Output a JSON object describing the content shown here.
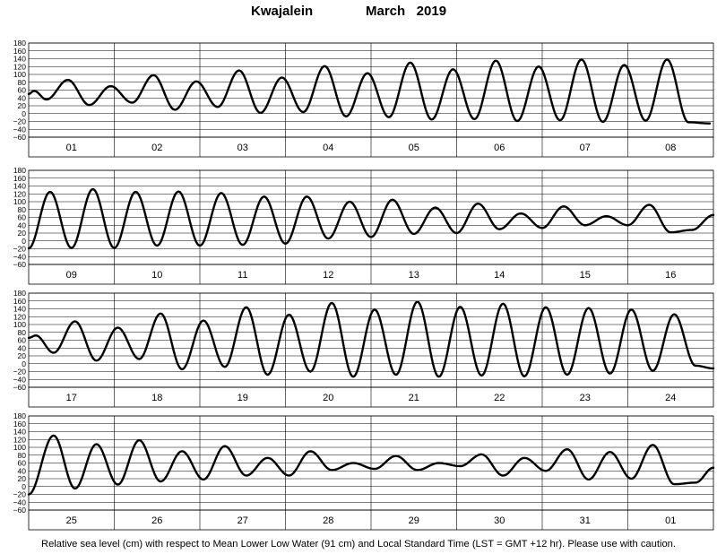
{
  "header": {
    "station": "Kwajalein",
    "month_year": "March   2019"
  },
  "footer": {
    "note": "Relative sea level (cm) with respect to Mean Lower Low Water (91 cm) and Local Standard Time (LST = GMT +12 hr). Please use with caution."
  },
  "chart_data": {
    "type": "line",
    "series_color": "#000000",
    "ylim": [
      -60,
      180
    ],
    "yticks": [
      180,
      160,
      140,
      120,
      100,
      80,
      60,
      40,
      20,
      0,
      -20,
      -40,
      -60
    ],
    "grid": true,
    "panels": [
      {
        "days": [
          "01",
          "02",
          "03",
          "04",
          "05",
          "06",
          "07",
          "08"
        ],
        "extrema": [
          [
            0,
            50
          ],
          [
            1.5,
            58
          ],
          [
            5,
            36
          ],
          [
            11,
            86
          ],
          [
            17,
            22
          ],
          [
            23,
            70
          ],
          [
            29,
            28
          ],
          [
            35,
            98
          ],
          [
            41,
            10
          ],
          [
            47,
            82
          ],
          [
            53,
            17
          ],
          [
            59,
            110
          ],
          [
            65,
            2
          ],
          [
            71,
            92
          ],
          [
            77,
            4
          ],
          [
            83,
            121
          ],
          [
            89,
            -7
          ],
          [
            95,
            103
          ],
          [
            101,
            -9
          ],
          [
            107,
            130
          ],
          [
            113,
            -15
          ],
          [
            119,
            113
          ],
          [
            125,
            -14
          ],
          [
            131,
            135
          ],
          [
            137,
            -19
          ],
          [
            143,
            120
          ],
          [
            149,
            -17
          ],
          [
            155,
            138
          ],
          [
            161,
            -21
          ],
          [
            167,
            124
          ],
          [
            173,
            -18
          ],
          [
            179,
            138
          ],
          [
            185,
            -22
          ],
          [
            191,
            -25
          ]
        ]
      },
      {
        "days": [
          "09",
          "10",
          "11",
          "12",
          "13",
          "14",
          "15",
          "16"
        ],
        "extrema": [
          [
            0,
            -19
          ],
          [
            6,
            125
          ],
          [
            12,
            -18
          ],
          [
            18,
            132
          ],
          [
            24,
            -18
          ],
          [
            30,
            125
          ],
          [
            36,
            -12
          ],
          [
            42,
            126
          ],
          [
            48,
            -12
          ],
          [
            54,
            122
          ],
          [
            60,
            -10
          ],
          [
            66,
            113
          ],
          [
            72,
            -7
          ],
          [
            78,
            113
          ],
          [
            84,
            6
          ],
          [
            90,
            100
          ],
          [
            96,
            10
          ],
          [
            102,
            105
          ],
          [
            108,
            18
          ],
          [
            114,
            85
          ],
          [
            120,
            20
          ],
          [
            126,
            95
          ],
          [
            132,
            30
          ],
          [
            138,
            70
          ],
          [
            144,
            33
          ],
          [
            150,
            88
          ],
          [
            156,
            40
          ],
          [
            162,
            63
          ],
          [
            168,
            40
          ],
          [
            174,
            92
          ],
          [
            180,
            22
          ],
          [
            186,
            28
          ],
          [
            192,
            66
          ]
        ]
      },
      {
        "days": [
          "17",
          "18",
          "19",
          "20",
          "21",
          "22",
          "23",
          "24"
        ],
        "extrema": [
          [
            0,
            66
          ],
          [
            2,
            72
          ],
          [
            7,
            28
          ],
          [
            13,
            108
          ],
          [
            19,
            8
          ],
          [
            25,
            92
          ],
          [
            31,
            12
          ],
          [
            37,
            128
          ],
          [
            43,
            -14
          ],
          [
            49,
            110
          ],
          [
            55,
            -8
          ],
          [
            61,
            144
          ],
          [
            67,
            -28
          ],
          [
            73,
            125
          ],
          [
            79,
            -20
          ],
          [
            85,
            155
          ],
          [
            91,
            -33
          ],
          [
            97,
            138
          ],
          [
            103,
            -28
          ],
          [
            109,
            158
          ],
          [
            115,
            -33
          ],
          [
            121,
            145
          ],
          [
            127,
            -30
          ],
          [
            133,
            153
          ],
          [
            139,
            -32
          ],
          [
            145,
            144
          ],
          [
            151,
            -28
          ],
          [
            157,
            142
          ],
          [
            163,
            -25
          ],
          [
            169,
            138
          ],
          [
            175,
            -18
          ],
          [
            181,
            126
          ],
          [
            187,
            -5
          ],
          [
            192,
            -12
          ]
        ]
      },
      {
        "days": [
          "25",
          "26",
          "27",
          "28",
          "29",
          "30",
          "31",
          "01"
        ],
        "extrema": [
          [
            0,
            -20
          ],
          [
            7,
            130
          ],
          [
            13,
            -5
          ],
          [
            19,
            108
          ],
          [
            25,
            5
          ],
          [
            31,
            118
          ],
          [
            37,
            13
          ],
          [
            43,
            90
          ],
          [
            49,
            18
          ],
          [
            55,
            103
          ],
          [
            61,
            28
          ],
          [
            67,
            73
          ],
          [
            73,
            28
          ],
          [
            79,
            90
          ],
          [
            85,
            42
          ],
          [
            91,
            60
          ],
          [
            97,
            45
          ],
          [
            103,
            78
          ],
          [
            109,
            42
          ],
          [
            115,
            60
          ],
          [
            121,
            52
          ],
          [
            127,
            82
          ],
          [
            133,
            28
          ],
          [
            139,
            73
          ],
          [
            145,
            40
          ],
          [
            151,
            95
          ],
          [
            157,
            18
          ],
          [
            163,
            88
          ],
          [
            169,
            20
          ],
          [
            175,
            106
          ],
          [
            181,
            6
          ],
          [
            187,
            10
          ],
          [
            192,
            48
          ]
        ]
      }
    ]
  }
}
